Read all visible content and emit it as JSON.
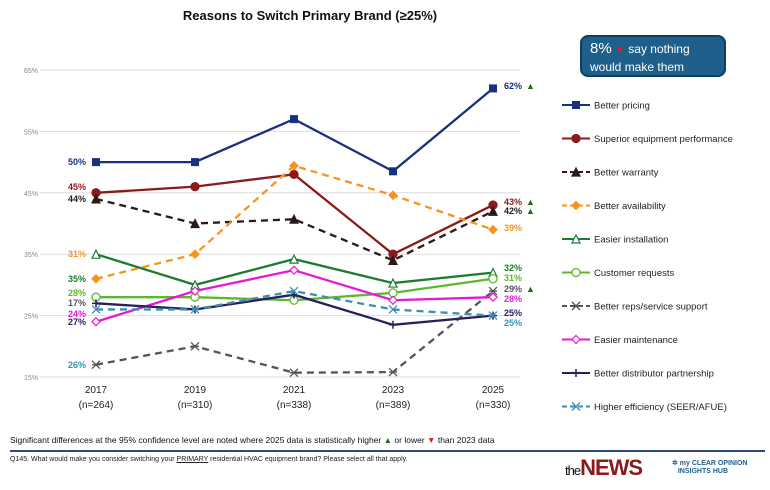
{
  "chart_data": {
    "type": "line",
    "title": "Reasons to Switch Primary Brand (≥25%)",
    "categories": [
      "2017",
      "2019",
      "2021",
      "2023",
      "2025"
    ],
    "category_sublabels": [
      "(n=264)",
      "(n=310)",
      "(n=338)",
      "(n=389)",
      "(n=330)"
    ],
    "y_ticks": [
      "15%",
      "25%",
      "35%",
      "45%",
      "55%",
      "65%"
    ],
    "ylim": [
      15,
      65
    ],
    "grid": true,
    "legend": "right",
    "series": [
      {
        "name": "Better pricing",
        "values": [
          50,
          50,
          57,
          48.5,
          62
        ],
        "color": "#1a2f80",
        "marker": "square-filled",
        "dash": false,
        "sig": "up",
        "start_label": "50%",
        "end_label": "62%"
      },
      {
        "name": "Superior equipment performance",
        "values": [
          45,
          46,
          48,
          35,
          43
        ],
        "color": "#8b1a1a",
        "marker": "circle-filled",
        "dash": false,
        "sig": "up",
        "start_label": "45%",
        "end_label": "43%"
      },
      {
        "name": "Better warranty",
        "values": [
          44,
          40,
          40.7,
          34,
          42
        ],
        "color": "#2a1a1a",
        "marker": "triangle-filled",
        "dash": true,
        "sig": "up",
        "start_label": "44%",
        "end_label": "42%"
      },
      {
        "name": "Better availability",
        "values": [
          31,
          35,
          49.4,
          44.6,
          39
        ],
        "color": "#f7941d",
        "marker": "diamond-filled",
        "dash": true,
        "sig": "",
        "start_label": "31%",
        "end_label": "39%"
      },
      {
        "name": "Easier installation",
        "values": [
          35,
          30,
          34.2,
          30.3,
          32
        ],
        "color": "#1e7b30",
        "marker": "triangle-open",
        "dash": false,
        "sig": "",
        "start_label": "35%",
        "end_label": "32%"
      },
      {
        "name": "Customer requests",
        "values": [
          28,
          28,
          27.5,
          28.7,
          31
        ],
        "color": "#5cb82e",
        "marker": "circle-open",
        "dash": false,
        "sig": "",
        "start_label": "28%",
        "end_label": "31%"
      },
      {
        "name": "Better reps/service support",
        "values": [
          17,
          20,
          15.7,
          15.8,
          29
        ],
        "color": "#555555",
        "marker": "star",
        "dash": true,
        "sig": "up",
        "start_label": "17%",
        "end_label": "29%"
      },
      {
        "name": "Easier maintenance",
        "values": [
          24,
          29,
          32.4,
          27.5,
          28
        ],
        "color": "#e619d6",
        "marker": "diamond-open",
        "dash": false,
        "sig": "",
        "start_label": "24%",
        "end_label": "28%"
      },
      {
        "name": "Better distributor partnership",
        "values": [
          27,
          26,
          28.4,
          23.5,
          25
        ],
        "color": "#2a1f5e",
        "marker": "plus",
        "dash": false,
        "sig": "",
        "start_label": "27%",
        "end_label": "25%"
      },
      {
        "name": "Higher efficiency (SEER/AFUE)",
        "values": [
          26,
          26,
          29,
          26,
          25
        ],
        "color": "#3a8fb5",
        "marker": "x",
        "dash": true,
        "sig": "",
        "start_label": "26%",
        "end_label": "25%"
      }
    ]
  },
  "callout": {
    "value": "8%",
    "sig": "down",
    "text": "say nothing would make them switch"
  },
  "footer": {
    "significance_note_a": "Significant differences at the 95% confidence level are noted where 2025 data is statistically higher",
    "significance_note_b": "or lower",
    "significance_note_c": "than 2023 data",
    "question_a": "Q145. What would make you consider switching your",
    "question_u": "PRIMARY",
    "question_b": "residential HVAC equipment brand? Please select all that apply.",
    "logo_news": "theNEWS",
    "logo_mco": "my CLEAR OPINION INSIGHTS HUB"
  },
  "colors": {
    "up": "#1e6b1e",
    "down": "#e02020",
    "callout_bg": "#1f5f8b"
  }
}
